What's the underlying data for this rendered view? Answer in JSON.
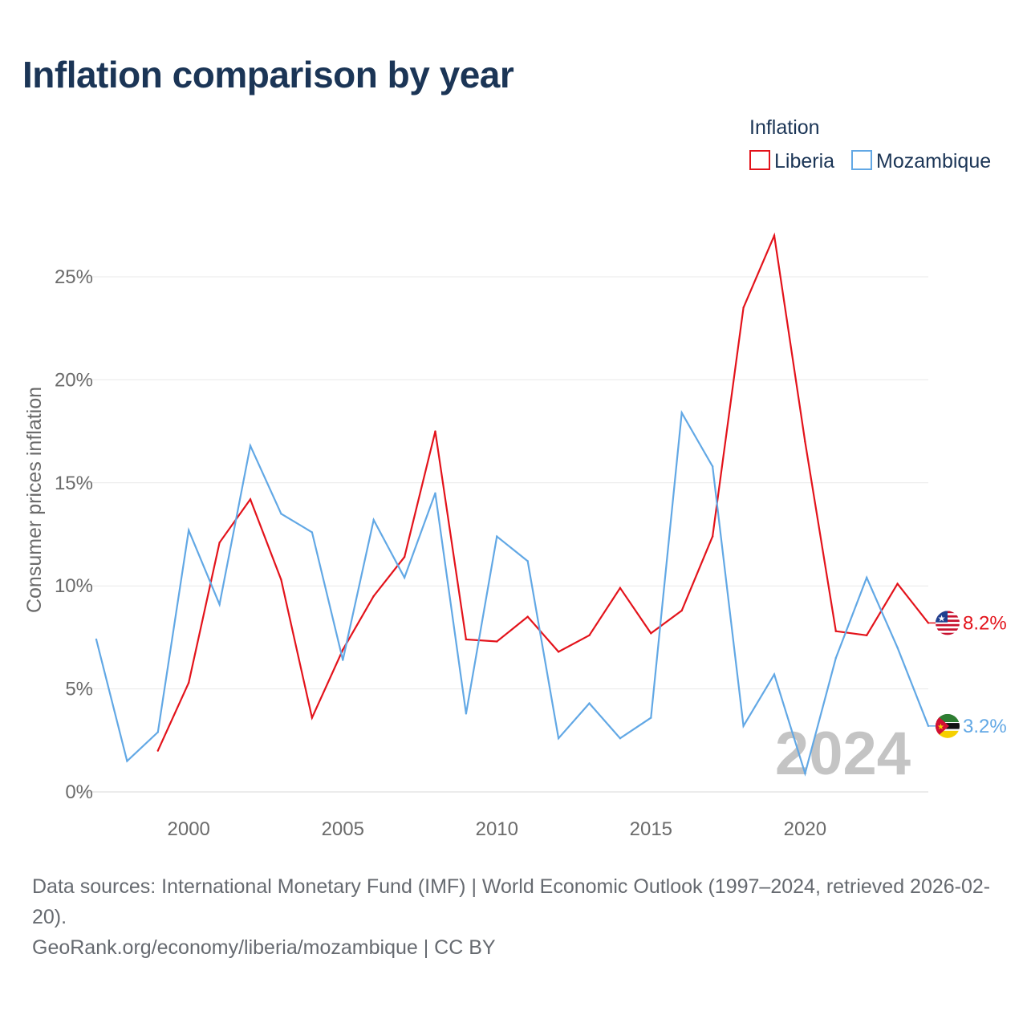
{
  "title": "Inflation comparison by year",
  "footer": {
    "sources": "Data sources: International Monetary Fund (IMF) | World Economic Outlook (1997–2024, retrieved 2026-02-20).",
    "url": "GeoRank.org/economy/liberia/mozambique | CC BY"
  },
  "colors": {
    "liberia": "#e3131b",
    "mozambique": "#62a8e5",
    "title": "#1b3556"
  },
  "chart_data": {
    "type": "line",
    "title": "Inflation comparison by year",
    "xlabel": "",
    "ylabel": "Consumer prices inflation",
    "xlim": [
      1997,
      2024
    ],
    "ylim": [
      0,
      27
    ],
    "x_ticks": [
      2000,
      2005,
      2010,
      2015,
      2020
    ],
    "y_ticks": [
      0,
      5,
      10,
      15,
      20,
      25
    ],
    "y_tick_labels": [
      "0%",
      "5%",
      "10%",
      "15%",
      "20%",
      "25%"
    ],
    "grid": true,
    "legend": {
      "title": "Inflation",
      "position": "top-right"
    },
    "watermark_year": "2024",
    "series": [
      {
        "name": "Liberia",
        "color": "#e3131b",
        "end_label": "8.2%",
        "flag_icon": "liberia-flag-icon",
        "points": [
          [
            1999,
            2.0
          ],
          [
            2000,
            5.3
          ],
          [
            2001,
            12.1
          ],
          [
            2002,
            14.2
          ],
          [
            2003,
            10.3
          ],
          [
            2004,
            3.6
          ],
          [
            2005,
            6.9
          ],
          [
            2006,
            9.5
          ],
          [
            2007,
            11.4
          ],
          [
            2008,
            17.5
          ],
          [
            2009,
            7.4
          ],
          [
            2010,
            7.3
          ],
          [
            2011,
            8.5
          ],
          [
            2012,
            6.8
          ],
          [
            2013,
            7.6
          ],
          [
            2014,
            9.9
          ],
          [
            2015,
            7.7
          ],
          [
            2016,
            8.8
          ],
          [
            2017,
            12.4
          ],
          [
            2018,
            23.5
          ],
          [
            2019,
            27.0
          ],
          [
            2020,
            17.0
          ],
          [
            2021,
            7.8
          ],
          [
            2022,
            7.6
          ],
          [
            2023,
            10.1
          ],
          [
            2024,
            8.2
          ]
        ]
      },
      {
        "name": "Mozambique",
        "color": "#62a8e5",
        "end_label": "3.2%",
        "flag_icon": "mozambique-flag-icon",
        "points": [
          [
            1997,
            7.4
          ],
          [
            1998,
            1.5
          ],
          [
            1999,
            2.9
          ],
          [
            2000,
            12.7
          ],
          [
            2001,
            9.1
          ],
          [
            2002,
            16.8
          ],
          [
            2003,
            13.5
          ],
          [
            2004,
            12.6
          ],
          [
            2005,
            6.4
          ],
          [
            2006,
            13.2
          ],
          [
            2007,
            10.4
          ],
          [
            2008,
            14.5
          ],
          [
            2009,
            3.8
          ],
          [
            2010,
            12.4
          ],
          [
            2011,
            11.2
          ],
          [
            2012,
            2.6
          ],
          [
            2013,
            4.3
          ],
          [
            2014,
            2.6
          ],
          [
            2015,
            3.6
          ],
          [
            2016,
            18.4
          ],
          [
            2017,
            15.8
          ],
          [
            2018,
            3.2
          ],
          [
            2019,
            5.7
          ],
          [
            2020,
            0.9
          ],
          [
            2021,
            6.5
          ],
          [
            2022,
            10.4
          ],
          [
            2023,
            7.0
          ],
          [
            2024,
            3.2
          ]
        ]
      }
    ]
  }
}
